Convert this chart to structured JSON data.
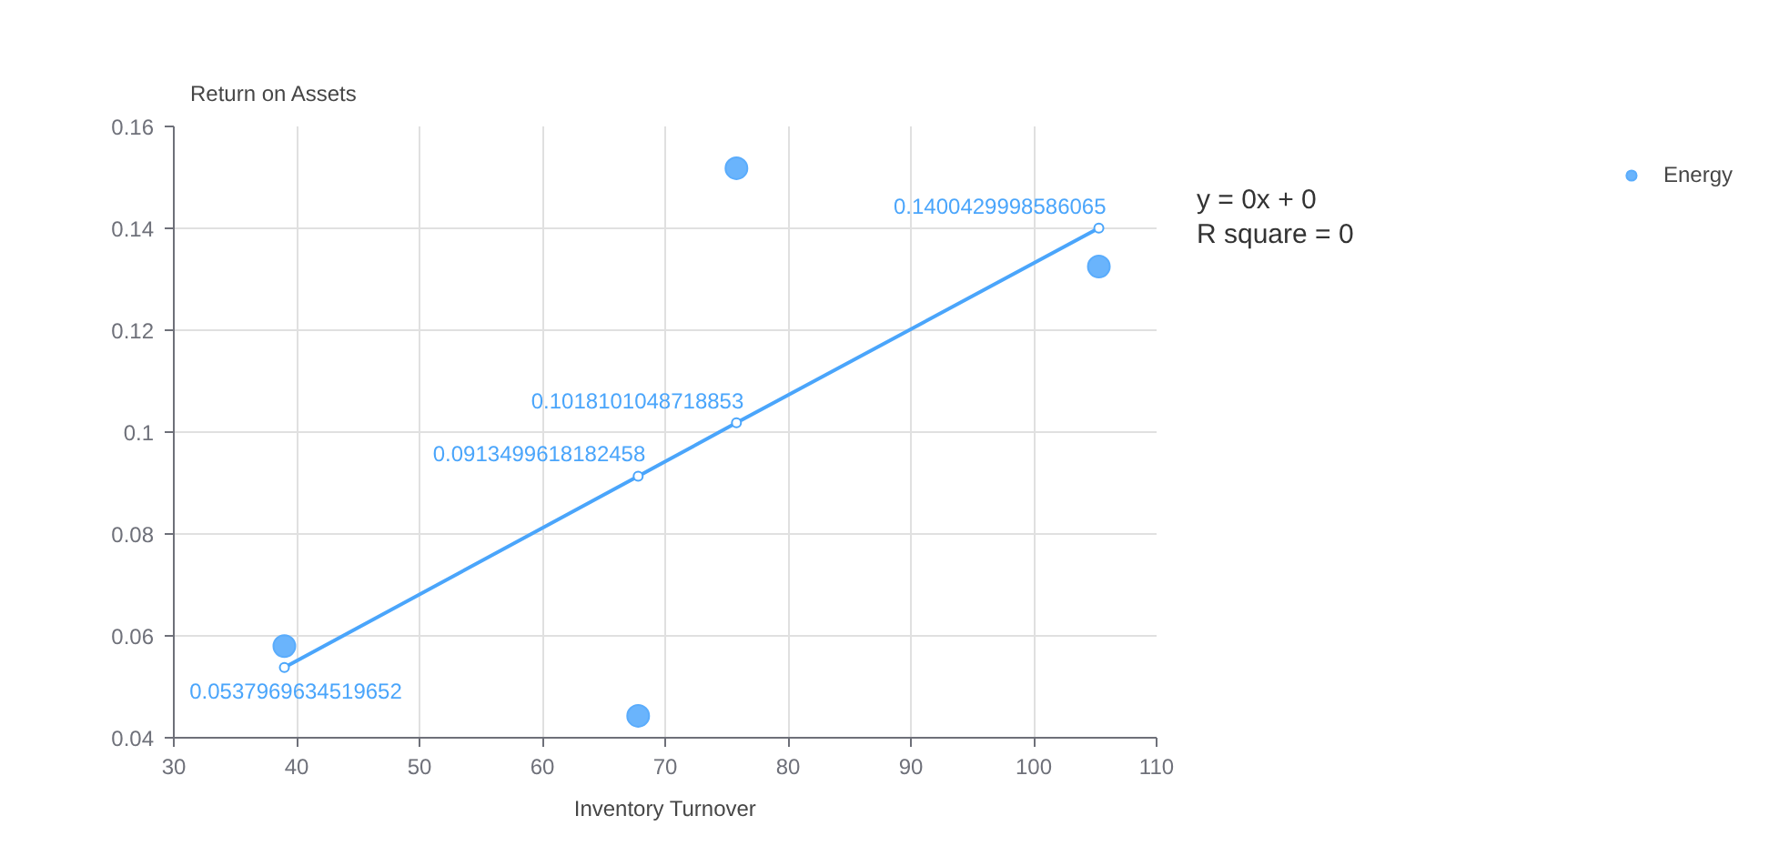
{
  "chart_data": {
    "type": "scatter",
    "ylabel": "Return on Assets",
    "xlabel": "Inventory Turnover",
    "xlim": [
      30,
      110
    ],
    "xticks": [
      30,
      40,
      50,
      60,
      70,
      80,
      90,
      100,
      110
    ],
    "ylim": [
      0.04,
      0.16
    ],
    "yticks": [
      0.04,
      0.06,
      0.08,
      0.1,
      0.12,
      0.14,
      0.16
    ],
    "grid": true,
    "legend": "top right",
    "marker": "circle",
    "annotations": [
      "y = 0x + 0",
      "R square = 0"
    ],
    "series": [
      {
        "name": "Energy",
        "color": "#5aacfc",
        "x": [
          39,
          67.8,
          75.8,
          105.3
        ],
        "values": [
          0.058,
          0.0443,
          0.1518,
          0.1325
        ]
      },
      {
        "type": "line",
        "color": "#4aa5fb",
        "x": [
          39,
          67.8,
          75.8,
          105.3
        ],
        "values": [
          0.0537969634519652,
          0.0913499618182458,
          0.1018101048718853,
          0.1400429998586065
        ],
        "value_labels": [
          "0.0537969634519652",
          "0.0913499618182458",
          "0.1018101048718853",
          "0.1400429998586065"
        ]
      }
    ]
  }
}
